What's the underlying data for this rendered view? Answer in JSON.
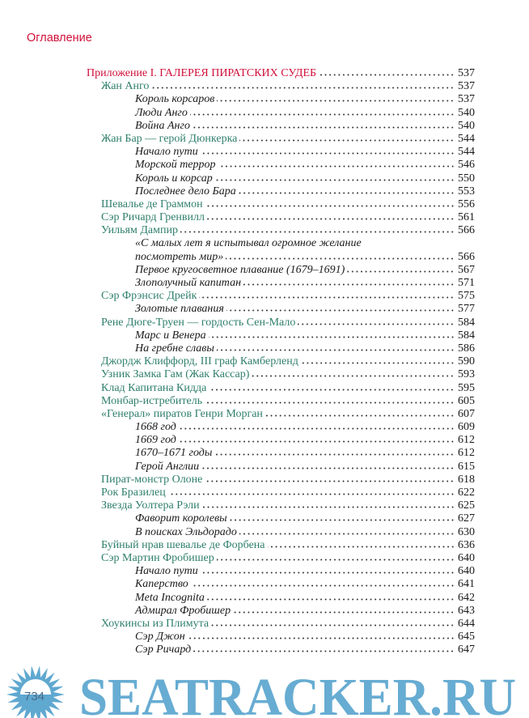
{
  "header": {
    "title": "Оглавление"
  },
  "toc": [
    {
      "level": 0,
      "title": "Приложение I. ГАЛЕРЕЯ ПИРАТСКИХ СУДЕБ",
      "page": "537"
    },
    {
      "level": 1,
      "title": "Жан Анго",
      "page": "537"
    },
    {
      "level": 2,
      "title": "Король корсаров",
      "page": "537"
    },
    {
      "level": 2,
      "title": "Люди Анго",
      "page": "540"
    },
    {
      "level": 2,
      "title": "Война Анго",
      "page": "540"
    },
    {
      "level": 1,
      "title": "Жан Бар — герой Дюнкерка",
      "page": "544"
    },
    {
      "level": 2,
      "title": "Начало пути",
      "page": "544"
    },
    {
      "level": 2,
      "title": "Морской террор",
      "page": "546"
    },
    {
      "level": 2,
      "title": "Король и корсар",
      "page": "550"
    },
    {
      "level": 2,
      "title": "Последнее дело Бара",
      "page": "553"
    },
    {
      "level": 1,
      "title": "Шевалье де Граммон",
      "page": "556"
    },
    {
      "level": 1,
      "title": "Сэр Ричард Гренвилл",
      "page": "561"
    },
    {
      "level": 1,
      "title": "Уильям Дампир",
      "page": "566"
    },
    {
      "level": 2,
      "title": "«С малых лет я испытывал огромное желание",
      "title2": "посмотреть мир»",
      "page": "566"
    },
    {
      "level": 2,
      "title": "Первое кругосветное плавание (1679–1691)",
      "page": "567"
    },
    {
      "level": 2,
      "title": "Злополучный капитан",
      "page": "571"
    },
    {
      "level": 1,
      "title": "Сэр Фрэнсис Дрейк",
      "page": "575"
    },
    {
      "level": 2,
      "title": "Золотые плавания",
      "page": "577"
    },
    {
      "level": 1,
      "title": "Рене Дюге-Труен — гордость Сен-Мало",
      "page": "584"
    },
    {
      "level": 2,
      "title": "Марс и Венера",
      "page": "584"
    },
    {
      "level": 2,
      "title": "На гребне славы",
      "page": "586"
    },
    {
      "level": 1,
      "title": "Джордж Клиффорд, III граф Камберленд",
      "page": "590"
    },
    {
      "level": 1,
      "title": "Узник Замка Гам (Жак Кассар)",
      "page": "593"
    },
    {
      "level": 1,
      "title": "Клад Капитана Кидда",
      "page": "595"
    },
    {
      "level": 1,
      "title": "Монбар-истребитель",
      "page": "605"
    },
    {
      "level": 1,
      "title": "«Генерал» пиратов Генри Морган",
      "page": "607"
    },
    {
      "level": 2,
      "title": "1668 год",
      "page": "609"
    },
    {
      "level": 2,
      "title": "1669 год",
      "page": "612"
    },
    {
      "level": 2,
      "title": "1670–1671 годы",
      "page": "612"
    },
    {
      "level": 2,
      "title": "Герой Англии",
      "page": "615"
    },
    {
      "level": 1,
      "title": "Пират-монстр Олоне",
      "page": "618"
    },
    {
      "level": 1,
      "title": "Рок Бразилец",
      "page": "622"
    },
    {
      "level": 1,
      "title": "Звезда Уолтера Рэли",
      "page": "625"
    },
    {
      "level": 2,
      "title": "Фаворит королевы",
      "page": "627"
    },
    {
      "level": 2,
      "title": "В поисках Эльдорадо",
      "page": "630"
    },
    {
      "level": 1,
      "title": "Буйный нрав шевалье де Форбена",
      "page": "636"
    },
    {
      "level": 1,
      "title": "Сэр Мартин Фробишер",
      "page": "640"
    },
    {
      "level": 2,
      "title": "Начало пути",
      "page": "640"
    },
    {
      "level": 2,
      "title": "Каперство",
      "page": "641"
    },
    {
      "level": 2,
      "title": "Meta Incognita",
      "page": "642"
    },
    {
      "level": 2,
      "title": "Адмирал Фробишер",
      "page": "643"
    },
    {
      "level": 1,
      "title": "Хоукинсы из Плимута",
      "page": "644"
    },
    {
      "level": 2,
      "title": "Сэр Джон",
      "page": "645"
    },
    {
      "level": 2,
      "title": "Сэр Ричард",
      "page": "647"
    }
  ],
  "footer": {
    "page_number": "734"
  },
  "watermark": {
    "text": "SEATRACKER.RU",
    "icon": "sun-icon",
    "color": "#5fa8d0"
  },
  "colors": {
    "heading": "#d0103a",
    "chapter": "#2f7f6c"
  }
}
